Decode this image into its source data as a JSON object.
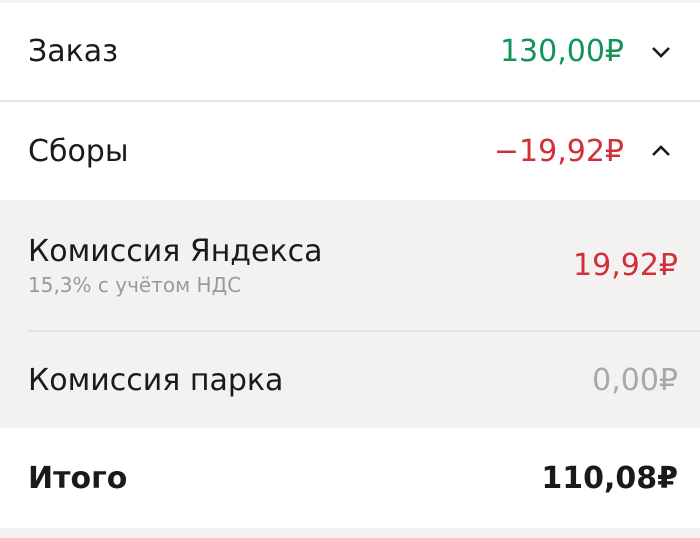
{
  "order": {
    "label": "Заказ",
    "amount": "130,00₽",
    "color": "#11935a",
    "icon": "chevron-down-icon"
  },
  "fees": {
    "label": "Сборы",
    "amount": "−19,92₽",
    "color": "#d0303a",
    "icon": "chevron-up-icon",
    "items": [
      {
        "label": "Комиссия Яндекса",
        "sublabel": "15,3% с учётом НДС",
        "amount": "19,92₽",
        "color": "#d0303a"
      },
      {
        "label": "Комиссия парка",
        "amount": "0,00₽",
        "color": "#a8a8a8"
      }
    ]
  },
  "total": {
    "label": "Итого",
    "amount": "110,08₽"
  }
}
